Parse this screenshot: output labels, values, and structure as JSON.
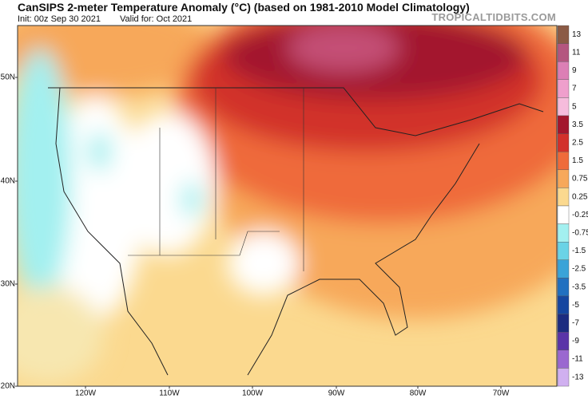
{
  "title": "CanSIPS 2-meter Temperature Anomaly (°C) (based on 1981-2010 Model Climatology)",
  "init": "Init: 00z Sep 30 2021",
  "valid": "Valid for: Oct 2021",
  "site": "TROPICALTIDBITS.COM",
  "lat_labels": [
    "50N",
    "40N",
    "30N",
    "20N"
  ],
  "lon_labels": [
    "120W",
    "110W",
    "100W",
    "90W",
    "80W",
    "70W"
  ],
  "colorbar": {
    "labels": [
      "13",
      "11",
      "9",
      "7",
      "5",
      "3.5",
      "2.5",
      "1.5",
      "0.75",
      "0.25",
      "-0.25",
      "-0.75",
      "-1.5",
      "-2.5",
      "-3.5",
      "-5",
      "-7",
      "-9",
      "-11",
      "-13"
    ],
    "colors": [
      "#8b5a45",
      "#b4567f",
      "#dc7fb5",
      "#ef9fcc",
      "#f6bcdc",
      "#a3162d",
      "#d2302b",
      "#ef6b3a",
      "#f7a85a",
      "#fbd98f",
      "#ffffff",
      "#a3f0f0",
      "#6ad3e6",
      "#3aa3d8",
      "#2170c0",
      "#1546a0",
      "#1c2c80",
      "#5a34a8",
      "#9a68d0",
      "#d0b0f0"
    ]
  }
}
